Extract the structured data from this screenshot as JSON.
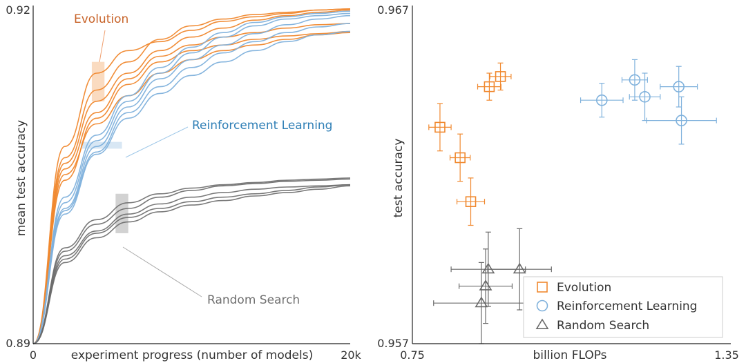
{
  "colors": {
    "evolution": "#f0882e",
    "evolution_dark": "#c8642a",
    "reinforcement": "#7fb1dc",
    "reinforcement_dark": "#2f7fb6",
    "random": "#6a6a6a",
    "axis": "#222222"
  },
  "chart_data": [
    {
      "type": "line",
      "title": "",
      "xlabel": "experiment progress (number of models)",
      "ylabel": "mean test accuracy",
      "xlim": [
        0,
        20000
      ],
      "ylim": [
        0.89,
        0.92
      ],
      "x_ticks": [
        "0",
        "20k"
      ],
      "y_ticks": [
        "0.92",
        "0.89"
      ],
      "annotations": [
        {
          "text": "Evolution",
          "series": "Evolution"
        },
        {
          "text": "Reinforcement Learning",
          "series": "Reinforcement Learning"
        },
        {
          "text": "Random Search",
          "series": "Random Search"
        }
      ],
      "highlight_bands": [
        {
          "series": "Evolution",
          "x_range": [
            3700,
            4500
          ],
          "y_range": [
            0.9115,
            0.915
          ]
        },
        {
          "series": "Reinforcement Learning",
          "x_range": [
            3000,
            5600
          ],
          "y_range": [
            0.9073,
            0.9079
          ]
        },
        {
          "series": "Random Search",
          "x_range": [
            5200,
            6000
          ],
          "y_range": [
            0.8998,
            0.9033
          ]
        }
      ],
      "series": [
        {
          "name": "Evolution",
          "group": "evolution",
          "x": [
            0,
            2000,
            4000,
            6000,
            8000,
            10000,
            12000,
            14000,
            16000,
            18000,
            20000
          ],
          "values": [
            0.89,
            0.9075,
            0.914,
            0.916,
            0.9168,
            0.9178,
            0.9186,
            0.919,
            0.9193,
            0.9196,
            0.9197
          ]
        },
        {
          "name": "Evolution",
          "group": "evolution",
          "x": [
            0,
            2000,
            4000,
            6000,
            8000,
            10000,
            12000,
            14000,
            16000,
            18000,
            20000
          ],
          "values": [
            0.89,
            0.9065,
            0.9125,
            0.915,
            0.917,
            0.9182,
            0.9188,
            0.9192,
            0.9194,
            0.9196,
            0.9197
          ]
        },
        {
          "name": "Evolution",
          "group": "evolution",
          "x": [
            0,
            2000,
            4000,
            6000,
            8000,
            10000,
            12000,
            14000,
            16000,
            18000,
            20000
          ],
          "values": [
            0.89,
            0.906,
            0.9115,
            0.914,
            0.916,
            0.9172,
            0.918,
            0.9187,
            0.9191,
            0.9194,
            0.9196
          ]
        },
        {
          "name": "Evolution",
          "group": "evolution",
          "x": [
            0,
            2000,
            4000,
            6000,
            8000,
            10000,
            12000,
            14000,
            16000,
            18000,
            20000
          ],
          "values": [
            0.89,
            0.9055,
            0.9105,
            0.9135,
            0.9155,
            0.9165,
            0.9172,
            0.9176,
            0.918,
            0.9183,
            0.9184
          ]
        },
        {
          "name": "Evolution",
          "group": "evolution",
          "x": [
            0,
            2000,
            4000,
            6000,
            8000,
            10000,
            12000,
            14000,
            16000,
            18000,
            20000
          ],
          "values": [
            0.89,
            0.905,
            0.9095,
            0.912,
            0.914,
            0.9152,
            0.916,
            0.9165,
            0.917,
            0.9174,
            0.9176
          ]
        },
        {
          "name": "Evolution",
          "group": "evolution",
          "x": [
            0,
            2000,
            4000,
            6000,
            8000,
            10000,
            12000,
            14000,
            16000,
            18000,
            20000
          ],
          "values": [
            0.89,
            0.9045,
            0.91,
            0.913,
            0.915,
            0.916,
            0.9165,
            0.917,
            0.9173,
            0.9175,
            0.9177
          ]
        },
        {
          "name": "Reinforcement Learning",
          "group": "reinforcement",
          "x": [
            0,
            2000,
            4000,
            6000,
            8000,
            10000,
            12000,
            14000,
            16000,
            18000,
            20000
          ],
          "values": [
            0.89,
            0.903,
            0.9085,
            0.912,
            0.9145,
            0.9163,
            0.9176,
            0.9185,
            0.919,
            0.9193,
            0.9195
          ]
        },
        {
          "name": "Reinforcement Learning",
          "group": "reinforcement",
          "x": [
            0,
            2000,
            4000,
            6000,
            8000,
            10000,
            12000,
            14000,
            16000,
            18000,
            20000
          ],
          "values": [
            0.89,
            0.9025,
            0.908,
            0.9115,
            0.914,
            0.9158,
            0.9172,
            0.9182,
            0.9188,
            0.9191,
            0.9193
          ]
        },
        {
          "name": "Reinforcement Learning",
          "group": "reinforcement",
          "x": [
            0,
            2000,
            4000,
            6000,
            8000,
            10000,
            12000,
            14000,
            16000,
            18000,
            20000
          ],
          "values": [
            0.89,
            0.902,
            0.9075,
            0.911,
            0.9135,
            0.9152,
            0.9165,
            0.9175,
            0.9183,
            0.9188,
            0.9191
          ]
        },
        {
          "name": "Reinforcement Learning",
          "group": "reinforcement",
          "x": [
            0,
            2000,
            4000,
            6000,
            8000,
            10000,
            12000,
            14000,
            16000,
            18000,
            20000
          ],
          "values": [
            0.89,
            0.9018,
            0.907,
            0.9105,
            0.9128,
            0.9145,
            0.9158,
            0.9168,
            0.9176,
            0.9181,
            0.9184
          ]
        },
        {
          "name": "Reinforcement Learning",
          "group": "reinforcement",
          "x": [
            0,
            2000,
            4000,
            6000,
            8000,
            10000,
            12000,
            14000,
            16000,
            18000,
            20000
          ],
          "values": [
            0.89,
            0.9015,
            0.9068,
            0.91,
            0.9122,
            0.9138,
            0.915,
            0.916,
            0.9168,
            0.9174,
            0.9177
          ]
        },
        {
          "name": "Random Search",
          "group": "random",
          "x": [
            0,
            2000,
            4000,
            6000,
            8000,
            10000,
            12000,
            14000,
            16000,
            18000,
            20000
          ],
          "values": [
            0.89,
            0.8985,
            0.901,
            0.9025,
            0.9033,
            0.9038,
            0.9041,
            0.9043,
            0.9045,
            0.9046,
            0.9047
          ]
        },
        {
          "name": "Random Search",
          "group": "random",
          "x": [
            0,
            2000,
            4000,
            6000,
            8000,
            10000,
            12000,
            14000,
            16000,
            18000,
            20000
          ],
          "values": [
            0.89,
            0.8982,
            0.9006,
            0.902,
            0.903,
            0.9036,
            0.904,
            0.9042,
            0.9044,
            0.9045,
            0.9046
          ]
        },
        {
          "name": "Random Search",
          "group": "random",
          "x": [
            0,
            2000,
            4000,
            6000,
            8000,
            10000,
            12000,
            14000,
            16000,
            18000,
            20000
          ],
          "values": [
            0.89,
            0.8978,
            0.9,
            0.9015,
            0.9024,
            0.903,
            0.9034,
            0.9037,
            0.9039,
            0.904,
            0.9041
          ]
        },
        {
          "name": "Random Search",
          "group": "random",
          "x": [
            0,
            2000,
            4000,
            6000,
            8000,
            10000,
            12000,
            14000,
            16000,
            18000,
            20000
          ],
          "values": [
            0.89,
            0.8975,
            0.8998,
            0.9012,
            0.902,
            0.9026,
            0.903,
            0.9033,
            0.9036,
            0.9039,
            0.9041
          ]
        },
        {
          "name": "Random Search",
          "group": "random",
          "x": [
            0,
            2000,
            4000,
            6000,
            8000,
            10000,
            12000,
            14000,
            16000,
            18000,
            20000
          ],
          "values": [
            0.89,
            0.8972,
            0.8994,
            0.9008,
            0.9017,
            0.9023,
            0.9027,
            0.9031,
            0.9034,
            0.9037,
            0.904
          ]
        }
      ]
    },
    {
      "type": "scatter",
      "title": "",
      "xlabel": "billion FLOPs",
      "ylabel": "test accuracy",
      "xlim": [
        0.75,
        1.35
      ],
      "ylim": [
        0.957,
        0.967
      ],
      "x_ticks": [
        "0.75",
        "1.35"
      ],
      "y_ticks": [
        "0.967",
        "0.957"
      ],
      "legend": {
        "position": "bottom-right",
        "entries": [
          "Evolution",
          "Reinforcement Learning",
          "Random Search"
        ]
      },
      "series": [
        {
          "name": "Evolution",
          "group": "evolution",
          "marker": "square",
          "points": [
            {
              "x": 0.916,
              "y": 0.9649,
              "xerr": 0.02,
              "yerr": 0.0004
            },
            {
              "x": 0.895,
              "y": 0.9646,
              "xerr": 0.022,
              "yerr": 0.0004
            },
            {
              "x": 0.802,
              "y": 0.9634,
              "xerr": 0.021,
              "yerr": 0.0007
            },
            {
              "x": 0.84,
              "y": 0.9625,
              "xerr": 0.019,
              "yerr": 0.0007
            },
            {
              "x": 0.86,
              "y": 0.9612,
              "xerr": 0.026,
              "yerr": 0.0007
            }
          ]
        },
        {
          "name": "Reinforcement Learning",
          "group": "reinforcement",
          "marker": "circle",
          "points": [
            {
              "x": 1.169,
              "y": 0.9648,
              "xerr": 0.024,
              "yerr": 0.0006
            },
            {
              "x": 1.252,
              "y": 0.9646,
              "xerr": 0.035,
              "yerr": 0.0006
            },
            {
              "x": 1.188,
              "y": 0.9643,
              "xerr": 0.029,
              "yerr": 0.0007
            },
            {
              "x": 1.107,
              "y": 0.9642,
              "xerr": 0.04,
              "yerr": 0.0005
            },
            {
              "x": 1.257,
              "y": 0.9636,
              "xerr": 0.066,
              "yerr": 0.0007
            }
          ]
        },
        {
          "name": "Random Search",
          "group": "random",
          "marker": "triangle",
          "points": [
            {
              "x": 0.952,
              "y": 0.9592,
              "xerr": 0.06,
              "yerr": 0.0012
            },
            {
              "x": 0.893,
              "y": 0.9592,
              "xerr": 0.07,
              "yerr": 0.0011
            },
            {
              "x": 0.888,
              "y": 0.9587,
              "xerr": 0.05,
              "yerr": 0.0011
            },
            {
              "x": 0.88,
              "y": 0.9582,
              "xerr": 0.09,
              "yerr": 0.0012
            }
          ]
        }
      ]
    }
  ]
}
